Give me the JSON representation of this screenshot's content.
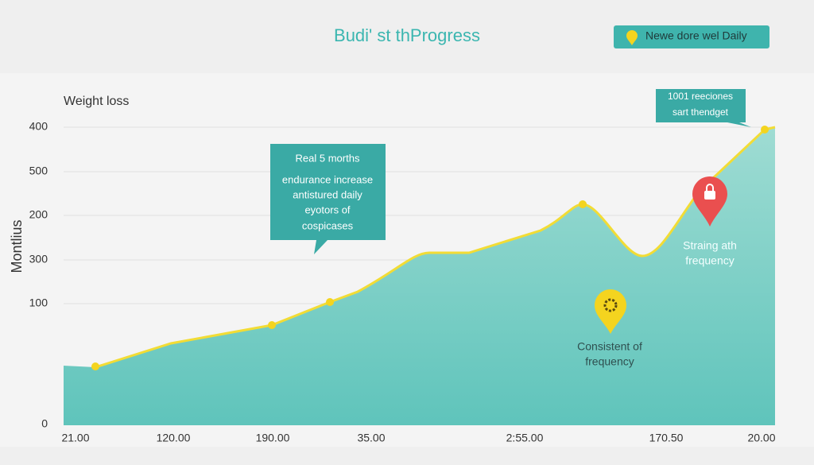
{
  "header": {
    "title": "Budi' st thProgress",
    "badge": "Newe dore wel Daily"
  },
  "chart": {
    "label": "Weight loss",
    "y_axis_title": "Montlius",
    "y_labels": [
      "400",
      "500",
      "200",
      "300",
      "100",
      "0"
    ],
    "x_labels": [
      "21.00",
      "120.00",
      "190.00",
      "35.00",
      "2:55.00",
      "170.50",
      "20.00"
    ]
  },
  "callouts": [
    {
      "lines": [
        "Real 5 morths",
        "endurance increase",
        "antistured daily",
        "eyotors of",
        "cospicases"
      ]
    },
    {
      "lines": [
        "1001 reeciones",
        "sart thendget"
      ]
    }
  ],
  "markers": [
    {
      "lines": [
        "Straing ath",
        "frequency"
      ]
    },
    {
      "lines": [
        "Consistent of",
        "frequency"
      ]
    }
  ]
}
